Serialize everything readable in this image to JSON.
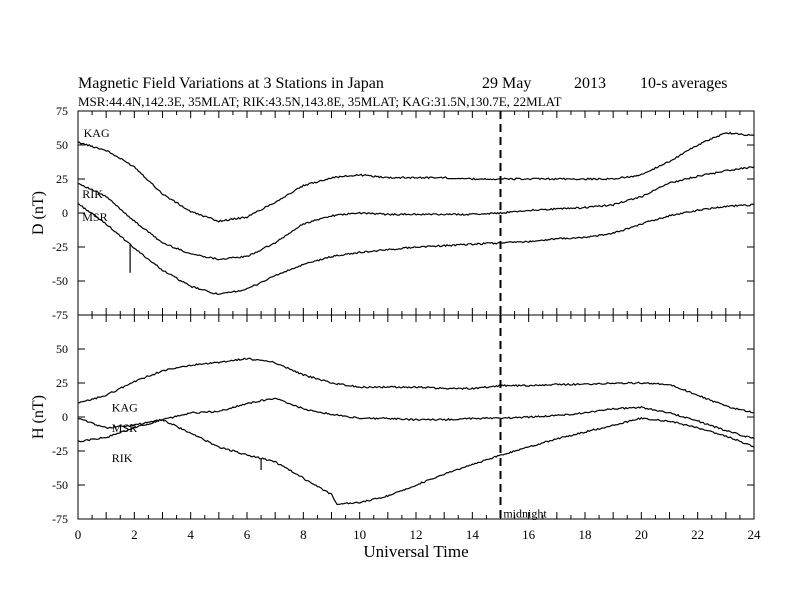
{
  "title": {
    "main": "Magnetic Field Variations at 3 Stations in Japan",
    "date": "29 May",
    "year": "2013",
    "averaging": "10-s averages",
    "stations_line": "MSR:44.4N,142.3E, 35MLAT;  RIK:43.5N,143.8E, 35MLAT;  KAG:31.5N,130.7E, 22MLAT"
  },
  "chart_data": [
    {
      "type": "line",
      "panel": "D",
      "ylabel": "D (nT)",
      "xlabel": "",
      "xlim": [
        0,
        24
      ],
      "ylim": [
        -75,
        75
      ],
      "yticks": [
        75,
        50,
        25,
        0,
        -25,
        -50,
        -75
      ],
      "yticklabels": [
        "75",
        "50",
        "25",
        "0",
        "-25",
        "-50",
        "-75"
      ],
      "series": [
        {
          "name": "KAG",
          "x": [
            0,
            1,
            2,
            3,
            4,
            5,
            6,
            7,
            8,
            9,
            10,
            11,
            12,
            13,
            14,
            15,
            16,
            17,
            18,
            19,
            20,
            21,
            22,
            23,
            24
          ],
          "y": [
            52,
            46,
            34,
            14,
            1,
            -6,
            -3,
            8,
            20,
            26,
            28,
            26,
            26,
            26,
            25,
            25,
            25,
            25,
            25,
            25,
            28,
            38,
            50,
            59,
            57
          ]
        },
        {
          "name": "RIK",
          "x": [
            0,
            1,
            2,
            3,
            4,
            5,
            6,
            7,
            8,
            9,
            10,
            11,
            12,
            13,
            14,
            15,
            16,
            17,
            18,
            19,
            20,
            21,
            22,
            23,
            24
          ],
          "y": [
            22,
            12,
            -6,
            -22,
            -30,
            -34,
            -32,
            -22,
            -8,
            -2,
            0,
            -1,
            -1,
            -1,
            -1,
            0,
            2,
            3,
            4,
            6,
            12,
            22,
            27,
            31,
            34
          ]
        },
        {
          "name": "MSR",
          "x": [
            0,
            1,
            2,
            3,
            4,
            5,
            6,
            7,
            8,
            9,
            10,
            11,
            12,
            13,
            14,
            15,
            16,
            17,
            18,
            19,
            20,
            21,
            22,
            23,
            24
          ],
          "y": [
            7,
            -8,
            -26,
            -42,
            -54,
            -60,
            -56,
            -46,
            -38,
            -32,
            -29,
            -27,
            -25,
            -24,
            -23,
            -22,
            -21,
            -19,
            -18,
            -15,
            -8,
            -2,
            2,
            5,
            6
          ]
        }
      ],
      "spikes": [
        {
          "series": "MSR",
          "x": 1.85,
          "y": -44
        }
      ],
      "annotations": [
        {
          "text": "KAG",
          "x": 0.2,
          "y": 59
        },
        {
          "text": "RIK",
          "x": 0.15,
          "y": 14
        },
        {
          "text": "MSR",
          "x": 0.15,
          "y": -3
        }
      ],
      "vline": {
        "x": 15,
        "style": "dashed"
      },
      "grid": false
    },
    {
      "type": "line",
      "panel": "H",
      "ylabel": "H (nT)",
      "xlabel": "Universal Time",
      "xlim": [
        0,
        24
      ],
      "ylim": [
        -75,
        75
      ],
      "xticks": [
        0,
        2,
        4,
        6,
        8,
        10,
        12,
        14,
        16,
        18,
        20,
        22,
        24
      ],
      "xticklabels": [
        "0",
        "2",
        "4",
        "6",
        "8",
        "10",
        "12",
        "14",
        "16",
        "18",
        "20",
        "22",
        "24"
      ],
      "yticks": [
        50,
        25,
        0,
        -25,
        -50,
        -75
      ],
      "yticklabels": [
        "50",
        "25",
        "0",
        "-25",
        "-50",
        "-75"
      ],
      "series": [
        {
          "name": "KAG",
          "x": [
            0,
            1,
            2,
            3,
            4,
            5,
            6,
            7,
            8,
            9,
            10,
            11,
            12,
            13,
            14,
            15,
            16,
            17,
            18,
            19,
            20,
            21,
            22,
            23,
            24
          ],
          "y": [
            10,
            16,
            26,
            34,
            38,
            40,
            43,
            40,
            31,
            25,
            22,
            22,
            22,
            21,
            21,
            23,
            23,
            24,
            24,
            25,
            25,
            24,
            16,
            8,
            3
          ]
        },
        {
          "name": "MSR",
          "x": [
            0,
            1,
            2,
            3,
            4,
            5,
            6,
            7,
            8,
            9,
            10,
            11,
            12,
            13,
            14,
            15,
            16,
            17,
            18,
            19,
            20,
            21,
            22,
            23,
            24
          ],
          "y": [
            -1,
            -8,
            -6,
            -2,
            3,
            4,
            10,
            14,
            6,
            2,
            -1,
            -1,
            -2,
            -2,
            -1,
            -1,
            0,
            1,
            3,
            6,
            7,
            3,
            -3,
            -10,
            -16
          ]
        },
        {
          "name": "RIK",
          "x": [
            0,
            1,
            2,
            3,
            4,
            5,
            6,
            7,
            8,
            9,
            9.2,
            10,
            11,
            12,
            13,
            14,
            15,
            16,
            17,
            18,
            19,
            20,
            21,
            22,
            23,
            24
          ],
          "y": [
            -18,
            -15,
            -8,
            -2,
            -12,
            -22,
            -28,
            -33,
            -45,
            -57,
            -64,
            -63,
            -58,
            -50,
            -42,
            -35,
            -28,
            -22,
            -16,
            -11,
            -6,
            -1,
            -3,
            -8,
            -14,
            -22
          ]
        }
      ],
      "spikes": [
        {
          "series": "RIK",
          "x": 6.5,
          "y": -39
        }
      ],
      "annotations": [
        {
          "text": "KAG",
          "x": 1.2,
          "y": 7
        },
        {
          "text": "MSR",
          "x": 1.2,
          "y": -8
        },
        {
          "text": "RIK",
          "x": 1.2,
          "y": -30
        },
        {
          "text": "midnight",
          "x": 15.1,
          "y": -71
        }
      ],
      "vline": {
        "x": 15,
        "style": "dashed"
      },
      "grid": false
    }
  ]
}
